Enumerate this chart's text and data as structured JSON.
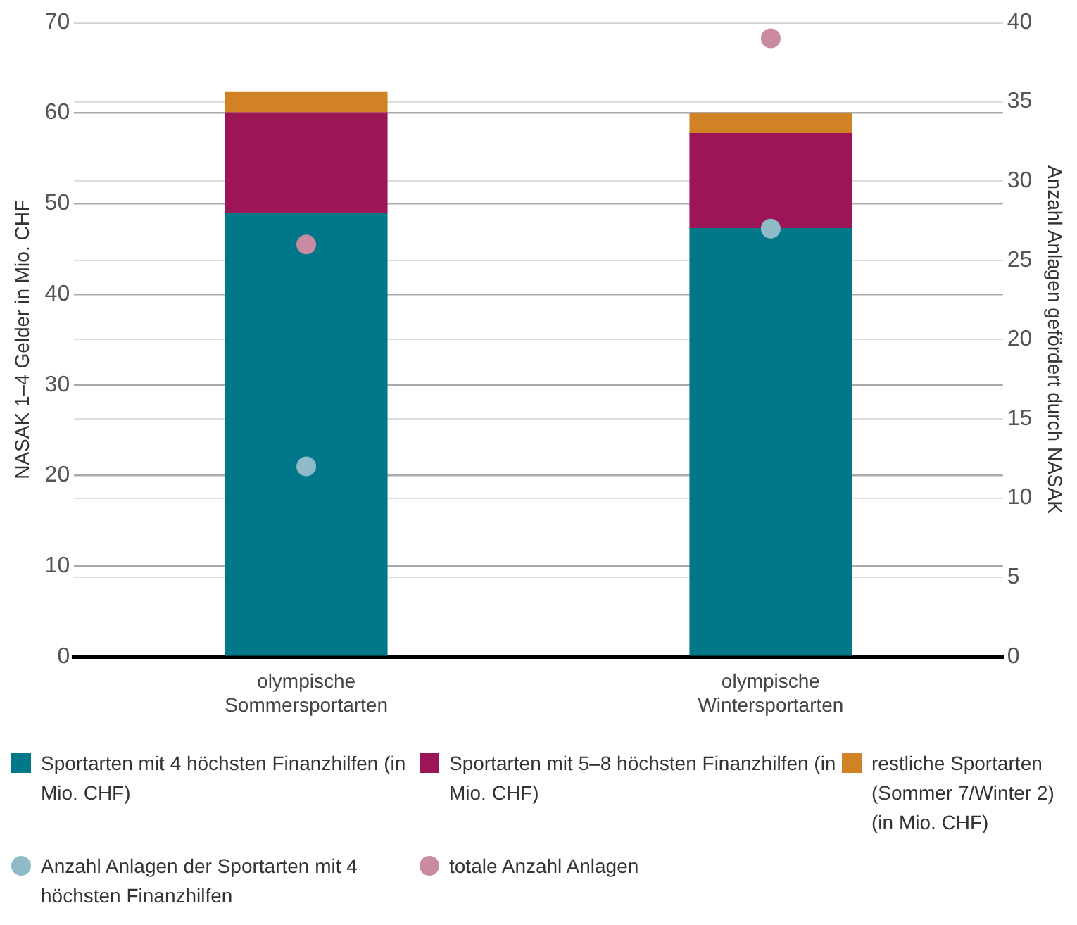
{
  "chart_data": {
    "type": "bar",
    "stacked": true,
    "ylabel": "NASAK 1–4 Gelder in Mio. CHF",
    "y2label": "Anzahl Anlagen gefördert durch NASAK",
    "categories": [
      "olympische Sommersportarten",
      "olympische Wintersportarten"
    ],
    "series": [
      {
        "name": "Sportarten mit 4 höchsten Finanzhilfen (in Mio. CHF)",
        "color": "#00788a",
        "values": [
          49.0,
          47.3
        ]
      },
      {
        "name": "Sportarten mit 5–8 höchsten Finanzhilfen (in Mio. CHF)",
        "color": "#9c1556",
        "values": [
          11.1,
          10.5
        ]
      },
      {
        "name": "restliche Sportarten (Sommer 7/Winter 2) (in Mio. CHF)",
        "color": "#d08225",
        "values": [
          2.3,
          2.2
        ]
      },
      {
        "name": "Anzahl Anlagen der Sportarten mit 4 höchsten Finanzhilfen",
        "type": "scatter",
        "axis": "y2",
        "color": "#8fbac8",
        "x": [
          "olympische Sommersportarten",
          "olympische Wintersportarten"
        ],
        "values": [
          12,
          27
        ]
      },
      {
        "name": "totale Anzahl Anlagen",
        "type": "scatter",
        "axis": "y2",
        "color": "#c98aa2",
        "x": [
          "olympische Sommersportarten",
          "olympische Wintersportarten"
        ],
        "values": [
          26,
          39
        ]
      }
    ],
    "ylim": [
      0,
      70
    ],
    "yticks": [
      0,
      10,
      20,
      30,
      40,
      50,
      60,
      70
    ],
    "y2lim": [
      0,
      40
    ],
    "y2ticks": [
      0,
      5,
      10,
      15,
      20,
      25,
      30,
      35,
      40
    ],
    "grid": true,
    "legend": "bottom",
    "marker": "circle"
  }
}
